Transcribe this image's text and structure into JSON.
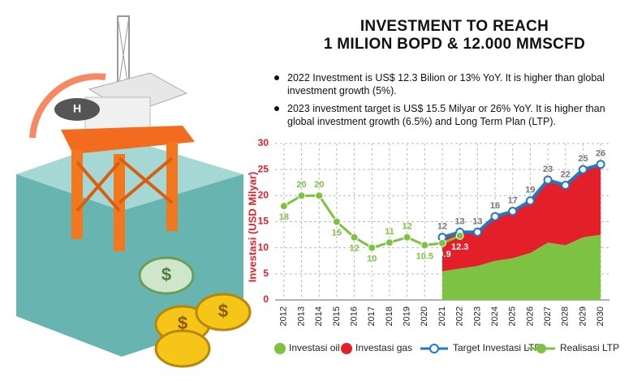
{
  "chart_data": {
    "type": "area",
    "title": [
      "INVESTMENT TO REACH",
      "1 MILION BOPD & 12.000 MMSCFD"
    ],
    "annotations": [
      "2022 Investment is US$ 12.3 Bilion or 13% YoY. It is higher than global investment growth (5%).",
      "2023 investment target is US$ 15.5 Milyar or 26% YoY. It is higher than global investment growth (6.5%) and Long Term Plan (LTP)."
    ],
    "y_label": "Investasi (USD Milyar)",
    "categories": [
      "2012",
      "2013",
      "2014",
      "2015",
      "2016",
      "2017",
      "2018",
      "2019",
      "2020",
      "2021",
      "2022",
      "2023",
      "2024",
      "2025",
      "2026",
      "2027",
      "2028",
      "2029",
      "2030"
    ],
    "ylim": [
      0,
      30
    ],
    "yticks": [
      0,
      5,
      10,
      15,
      20,
      25,
      30
    ],
    "grid": true,
    "legend": "bottom",
    "series": [
      {
        "name": "Investasi oil",
        "type": "area",
        "color": "#7dc242",
        "values": [
          null,
          null,
          null,
          null,
          null,
          null,
          null,
          null,
          null,
          5.5,
          6,
          6.5,
          7.5,
          8,
          9,
          11,
          10.5,
          12,
          12.5
        ]
      },
      {
        "name": "Investasi gas",
        "type": "area",
        "color": "#e3202a",
        "values": [
          null,
          null,
          null,
          null,
          null,
          null,
          null,
          null,
          null,
          6.5,
          7,
          6.5,
          8.5,
          9,
          10,
          12,
          11.5,
          13,
          13.5
        ]
      },
      {
        "name": "Target Investasi LTP",
        "type": "line",
        "color": "#1f78c8",
        "values": [
          null,
          null,
          null,
          null,
          null,
          null,
          null,
          null,
          null,
          12,
          13,
          13,
          16,
          17,
          19,
          23,
          22,
          25,
          26
        ]
      },
      {
        "name": "Realisasi LTP",
        "type": "line",
        "color": "#7dc242",
        "values": [
          18,
          20,
          20,
          15,
          12,
          10,
          11,
          12,
          10.5,
          10.9,
          12.3,
          null,
          null,
          null,
          null,
          null,
          null,
          null,
          null
        ]
      }
    ]
  }
}
